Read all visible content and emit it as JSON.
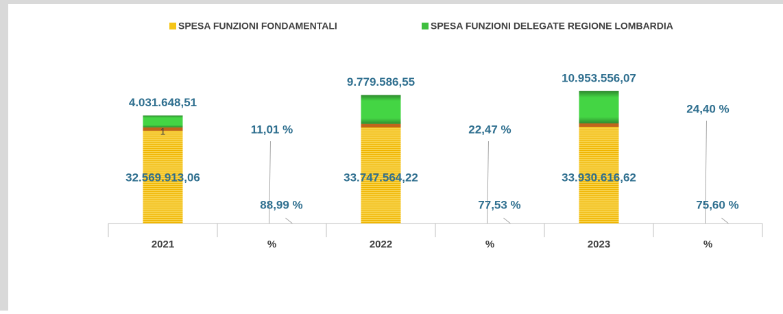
{
  "chart_data": {
    "type": "bar",
    "stacked": true,
    "categories": [
      "2021",
      "%",
      "2022",
      "%",
      "2023",
      "%"
    ],
    "series": [
      {
        "name": "SPESA FUNZIONI FONDAMENTALI",
        "color": "#f5c518",
        "values": [
          32569913.06,
          88.99,
          33747564.22,
          77.53,
          33930616.62,
          75.6
        ],
        "value_labels": [
          "32.569.913,06",
          "88,99 %",
          "33.747.564,22",
          "77,53 %",
          "33.930.616,62",
          "75,60 %"
        ]
      },
      {
        "name": "SPESA FUNZIONI DELEGATE REGIONE LOMBARDIA",
        "color": "#3fbf3f",
        "values": [
          4031648.51,
          11.01,
          9779586.55,
          22.47,
          10953556.07,
          24.4
        ],
        "value_labels": [
          "4.031.648,51",
          "11,01 %",
          "9.779.586,55",
          "22,47 %",
          "10.953.556,07",
          "24,40 %"
        ]
      }
    ],
    "annotation": "1",
    "ylim": [
      0,
      46000000
    ],
    "legend": "top"
  }
}
